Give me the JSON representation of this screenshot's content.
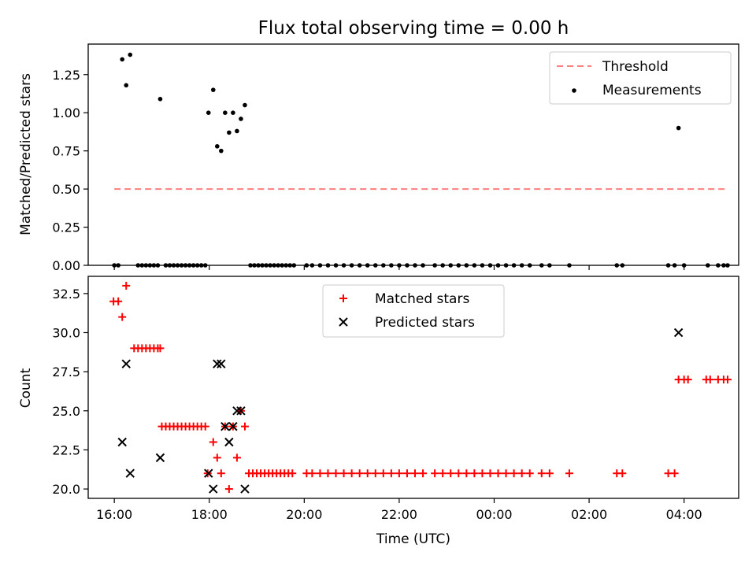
{
  "figure": {
    "title": "Flux total observing time = 0.00 h"
  },
  "chart_data": [
    {
      "type": "scatter",
      "ylabel": "Matched/Predicted stars",
      "xlim": [
        "15:27",
        "05:09"
      ],
      "ylim": [
        0,
        1.45
      ],
      "y_ticks": [
        "0.00",
        "0.25",
        "0.50",
        "0.75",
        "1.00",
        "1.25"
      ],
      "legend_position": "top-right",
      "threshold": {
        "name": "Threshold",
        "value": 0.5,
        "x_start": "16:00",
        "x_end": "04:55",
        "color": "#ff7f7f"
      },
      "series": [
        {
          "name": "Measurements",
          "color": "#000000",
          "points": [
            [
              "16:00",
              0
            ],
            [
              "16:05",
              0
            ],
            [
              "16:10",
              1.35
            ],
            [
              "16:15",
              1.18
            ],
            [
              "16:20",
              1.38
            ],
            [
              "16:30",
              0
            ],
            [
              "16:35",
              0
            ],
            [
              "16:40",
              0
            ],
            [
              "16:45",
              0
            ],
            [
              "16:50",
              0
            ],
            [
              "16:55",
              0
            ],
            [
              "16:58",
              1.09
            ],
            [
              "17:05",
              0
            ],
            [
              "17:10",
              0
            ],
            [
              "17:15",
              0
            ],
            [
              "17:20",
              0
            ],
            [
              "17:25",
              0
            ],
            [
              "17:30",
              0
            ],
            [
              "17:35",
              0
            ],
            [
              "17:40",
              0
            ],
            [
              "17:45",
              0
            ],
            [
              "17:50",
              0
            ],
            [
              "17:55",
              0
            ],
            [
              "17:59",
              1.0
            ],
            [
              "18:05",
              1.15
            ],
            [
              "18:10",
              0.78
            ],
            [
              "18:15",
              0.75
            ],
            [
              "18:20",
              1.0
            ],
            [
              "18:25",
              0.87
            ],
            [
              "18:30",
              1.0
            ],
            [
              "18:35",
              0.88
            ],
            [
              "18:40",
              0.96
            ],
            [
              "18:45",
              1.05
            ],
            [
              "18:52",
              0
            ],
            [
              "18:57",
              0
            ],
            [
              "19:02",
              0
            ],
            [
              "19:07",
              0
            ],
            [
              "19:12",
              0
            ],
            [
              "19:17",
              0
            ],
            [
              "19:22",
              0
            ],
            [
              "19:27",
              0
            ],
            [
              "19:32",
              0
            ],
            [
              "19:37",
              0
            ],
            [
              "19:42",
              0
            ],
            [
              "19:47",
              0
            ],
            [
              "20:03",
              0
            ],
            [
              "20:10",
              0
            ],
            [
              "20:20",
              0
            ],
            [
              "20:30",
              0
            ],
            [
              "20:40",
              0
            ],
            [
              "20:50",
              0
            ],
            [
              "21:00",
              0
            ],
            [
              "21:10",
              0
            ],
            [
              "21:20",
              0
            ],
            [
              "21:30",
              0
            ],
            [
              "21:40",
              0
            ],
            [
              "21:50",
              0
            ],
            [
              "22:00",
              0
            ],
            [
              "22:10",
              0
            ],
            [
              "22:20",
              0
            ],
            [
              "22:30",
              0
            ],
            [
              "22:45",
              0
            ],
            [
              "22:55",
              0
            ],
            [
              "23:05",
              0
            ],
            [
              "23:15",
              0
            ],
            [
              "23:25",
              0
            ],
            [
              "23:35",
              0
            ],
            [
              "23:45",
              0
            ],
            [
              "23:55",
              0
            ],
            [
              "00:05",
              0
            ],
            [
              "00:15",
              0
            ],
            [
              "00:25",
              0
            ],
            [
              "00:35",
              0
            ],
            [
              "00:45",
              0
            ],
            [
              "01:00",
              0
            ],
            [
              "01:10",
              0
            ],
            [
              "01:35",
              0
            ],
            [
              "02:35",
              0
            ],
            [
              "02:42",
              0
            ],
            [
              "03:40",
              0
            ],
            [
              "03:48",
              0
            ],
            [
              "03:53",
              0.9
            ],
            [
              "04:00",
              0
            ],
            [
              "04:30",
              0
            ],
            [
              "04:43",
              0
            ],
            [
              "04:50",
              0
            ],
            [
              "04:55",
              0
            ]
          ]
        }
      ]
    },
    {
      "type": "scatter",
      "xlabel": "Time (UTC)",
      "ylabel": "Count",
      "xlim": [
        "15:27",
        "05:09"
      ],
      "ylim": [
        19.4,
        33.6
      ],
      "x_ticks": [
        "16:00",
        "18:00",
        "20:00",
        "22:00",
        "00:00",
        "02:00",
        "04:00"
      ],
      "y_ticks": [
        "20.0",
        "22.5",
        "25.0",
        "27.5",
        "30.0",
        "32.5"
      ],
      "legend_position": "upper-center",
      "series": [
        {
          "name": "Matched stars",
          "marker": "plus",
          "color": "#ff0000",
          "points": [
            [
              "15:59",
              32
            ],
            [
              "16:05",
              32
            ],
            [
              "16:10",
              31
            ],
            [
              "16:15",
              33
            ],
            [
              "16:25",
              29
            ],
            [
              "16:30",
              29
            ],
            [
              "16:35",
              29
            ],
            [
              "16:40",
              29
            ],
            [
              "16:45",
              29
            ],
            [
              "16:50",
              29
            ],
            [
              "16:55",
              29
            ],
            [
              "16:58",
              29
            ],
            [
              "17:00",
              24
            ],
            [
              "17:05",
              24
            ],
            [
              "17:10",
              24
            ],
            [
              "17:15",
              24
            ],
            [
              "17:20",
              24
            ],
            [
              "17:25",
              24
            ],
            [
              "17:30",
              24
            ],
            [
              "17:35",
              24
            ],
            [
              "17:40",
              24
            ],
            [
              "17:45",
              24
            ],
            [
              "17:50",
              24
            ],
            [
              "17:55",
              24
            ],
            [
              "17:58",
              21
            ],
            [
              "18:05",
              23
            ],
            [
              "18:10",
              22
            ],
            [
              "18:15",
              21
            ],
            [
              "18:20",
              24
            ],
            [
              "18:25",
              20
            ],
            [
              "18:30",
              24
            ],
            [
              "18:35",
              22
            ],
            [
              "18:40",
              25
            ],
            [
              "18:45",
              24
            ],
            [
              "18:50",
              21
            ],
            [
              "18:55",
              21
            ],
            [
              "19:00",
              21
            ],
            [
              "19:05",
              21
            ],
            [
              "19:10",
              21
            ],
            [
              "19:15",
              21
            ],
            [
              "19:20",
              21
            ],
            [
              "19:25",
              21
            ],
            [
              "19:30",
              21
            ],
            [
              "19:35",
              21
            ],
            [
              "19:40",
              21
            ],
            [
              "19:45",
              21
            ],
            [
              "20:03",
              21
            ],
            [
              "20:10",
              21
            ],
            [
              "20:20",
              21
            ],
            [
              "20:30",
              21
            ],
            [
              "20:40",
              21
            ],
            [
              "20:50",
              21
            ],
            [
              "21:00",
              21
            ],
            [
              "21:10",
              21
            ],
            [
              "21:20",
              21
            ],
            [
              "21:30",
              21
            ],
            [
              "21:40",
              21
            ],
            [
              "21:50",
              21
            ],
            [
              "22:00",
              21
            ],
            [
              "22:10",
              21
            ],
            [
              "22:20",
              21
            ],
            [
              "22:30",
              21
            ],
            [
              "22:45",
              21
            ],
            [
              "22:55",
              21
            ],
            [
              "23:05",
              21
            ],
            [
              "23:15",
              21
            ],
            [
              "23:25",
              21
            ],
            [
              "23:35",
              21
            ],
            [
              "23:45",
              21
            ],
            [
              "23:55",
              21
            ],
            [
              "00:05",
              21
            ],
            [
              "00:15",
              21
            ],
            [
              "00:25",
              21
            ],
            [
              "00:35",
              21
            ],
            [
              "00:45",
              21
            ],
            [
              "01:00",
              21
            ],
            [
              "01:10",
              21
            ],
            [
              "01:35",
              21
            ],
            [
              "02:35",
              21
            ],
            [
              "02:42",
              21
            ],
            [
              "03:40",
              21
            ],
            [
              "03:48",
              21
            ],
            [
              "03:53",
              27
            ],
            [
              "04:00",
              27
            ],
            [
              "04:05",
              27
            ],
            [
              "04:28",
              27
            ],
            [
              "04:33",
              27
            ],
            [
              "04:43",
              27
            ],
            [
              "04:50",
              27
            ],
            [
              "04:55",
              27
            ]
          ]
        },
        {
          "name": "Predicted stars",
          "marker": "x",
          "color": "#000000",
          "points": [
            [
              "16:10",
              23
            ],
            [
              "16:15",
              28
            ],
            [
              "16:20",
              21
            ],
            [
              "16:58",
              22
            ],
            [
              "17:59",
              21
            ],
            [
              "18:05",
              20
            ],
            [
              "18:10",
              28
            ],
            [
              "18:15",
              28
            ],
            [
              "18:20",
              24
            ],
            [
              "18:25",
              23
            ],
            [
              "18:30",
              24
            ],
            [
              "18:35",
              25
            ],
            [
              "18:40",
              25
            ],
            [
              "18:45",
              20
            ],
            [
              "03:53",
              30
            ]
          ]
        }
      ]
    }
  ]
}
